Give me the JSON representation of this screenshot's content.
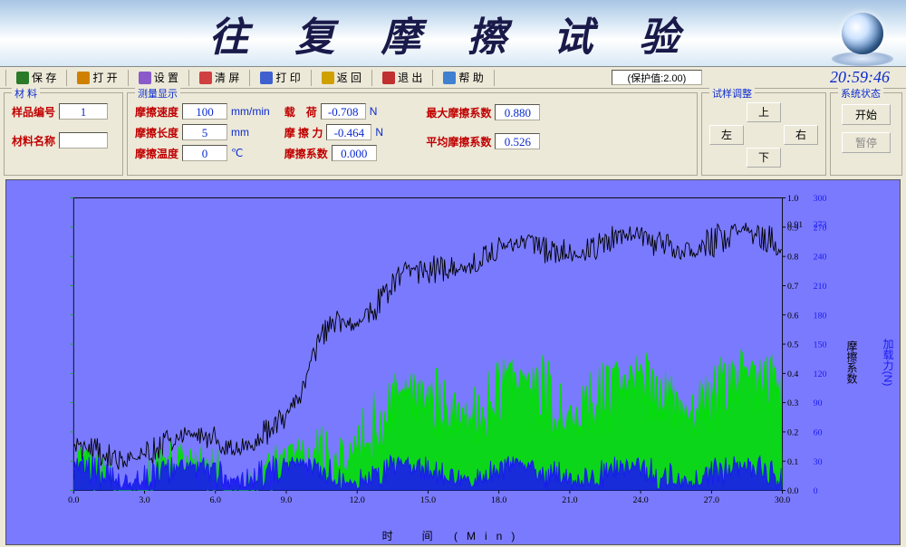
{
  "banner": {
    "title": "往 复 摩 擦 试 验"
  },
  "toolbar": {
    "items": [
      {
        "label": "保 存",
        "color": "#2a7a2a"
      },
      {
        "label": "打 开",
        "color": "#d08000"
      },
      {
        "label": "设 置",
        "color": "#8a5aca"
      },
      {
        "label": "清 屏",
        "color": "#d04040"
      },
      {
        "label": "打 印",
        "color": "#4060d0"
      },
      {
        "label": "返 回",
        "color": "#d0a000"
      },
      {
        "label": "退 出",
        "color": "#c03030"
      },
      {
        "label": "帮 助",
        "color": "#4080d0"
      }
    ],
    "protect_label": "(保护值:2.00)",
    "clock": "20:59:46"
  },
  "material": {
    "group_title": "材 料",
    "id_label": "样品编号",
    "id_value": "1",
    "name_label": "材料名称",
    "name_value": ""
  },
  "measure": {
    "group_title": "测量显示",
    "speed_label": "摩擦速度",
    "speed_value": "100",
    "speed_unit": "mm/min",
    "length_label": "摩擦长度",
    "length_value": "5",
    "length_unit": "mm",
    "temp_label": "摩擦温度",
    "temp_value": "0",
    "temp_unit": "℃",
    "load_label": "载　荷",
    "load_value": "-0.708",
    "load_unit": "N",
    "force_label": "摩 擦 力",
    "force_value": "-0.464",
    "force_unit": "N",
    "coef_label": "摩擦系数",
    "coef_value": "0.000",
    "max_coef_label": "最大摩擦系数",
    "max_coef_value": "0.880",
    "avg_coef_label": "平均摩擦系数",
    "avg_coef_value": "0.526"
  },
  "adjust": {
    "group_title": "试样调整",
    "up": "上",
    "down": "下",
    "left": "左",
    "right": "右"
  },
  "state": {
    "group_title": "系统状态",
    "start": "开始",
    "pause": "暂停"
  },
  "chart": {
    "type": "line",
    "background_color": "#7a7aff",
    "x_label": "时　间 (Min)",
    "y_r1_label": "摩擦系数",
    "y_r2_label": "加载力(N)",
    "xlim": [
      0,
      30
    ],
    "xtick_step": 3.0,
    "y_r1_lim": [
      0,
      1.0
    ],
    "y_r1_tick_step": 0.1,
    "y_r2_lim": [
      0,
      300
    ],
    "y_r2_tick_step": 30,
    "annotations_r1": [
      {
        "y": 0.91,
        "text": "0.91"
      }
    ],
    "annotations_r2": [
      {
        "y": 273,
        "text": "273"
      }
    ],
    "series": [
      {
        "name": "coefficient",
        "color": "#000000",
        "width": 1,
        "baseline": [
          [
            0,
            0.12
          ],
          [
            1,
            0.13
          ],
          [
            2,
            0.13
          ],
          [
            3,
            0.14
          ],
          [
            4,
            0.15
          ],
          [
            5,
            0.16
          ],
          [
            6,
            0.17
          ],
          [
            7,
            0.18
          ],
          [
            8,
            0.2
          ],
          [
            9,
            0.23
          ],
          [
            9.5,
            0.28
          ],
          [
            10,
            0.4
          ],
          [
            10.5,
            0.52
          ],
          [
            11,
            0.58
          ],
          [
            11.5,
            0.6
          ],
          [
            12,
            0.6
          ],
          [
            12.5,
            0.62
          ],
          [
            13,
            0.64
          ],
          [
            13.5,
            0.7
          ],
          [
            14,
            0.72
          ],
          [
            15,
            0.74
          ],
          [
            16,
            0.78
          ],
          [
            17,
            0.8
          ],
          [
            18,
            0.82
          ],
          [
            19,
            0.82
          ],
          [
            20,
            0.83
          ],
          [
            22,
            0.84
          ],
          [
            24,
            0.85
          ],
          [
            26,
            0.85
          ],
          [
            28,
            0.86
          ],
          [
            30,
            0.86
          ]
        ],
        "oscillation": 0.06
      },
      {
        "name": "force",
        "color": "#00e000",
        "width": 1,
        "baseline": [
          [
            0,
            0.02
          ],
          [
            8,
            0.02
          ],
          [
            10,
            0.05
          ],
          [
            11,
            0.15
          ],
          [
            12,
            0.22
          ],
          [
            13,
            0.24
          ],
          [
            14,
            0.26
          ],
          [
            15,
            0.28
          ],
          [
            16,
            0.3
          ],
          [
            18,
            0.31
          ],
          [
            20,
            0.32
          ],
          [
            24,
            0.33
          ],
          [
            30,
            0.34
          ]
        ],
        "oscillation": 0.15,
        "fill_to_zero": true
      },
      {
        "name": "load",
        "color": "#1a1af0",
        "width": 1,
        "baseline": [
          [
            0,
            0.06
          ],
          [
            30,
            0.06
          ]
        ],
        "oscillation": 0.06,
        "fill_to_zero": true
      }
    ]
  }
}
